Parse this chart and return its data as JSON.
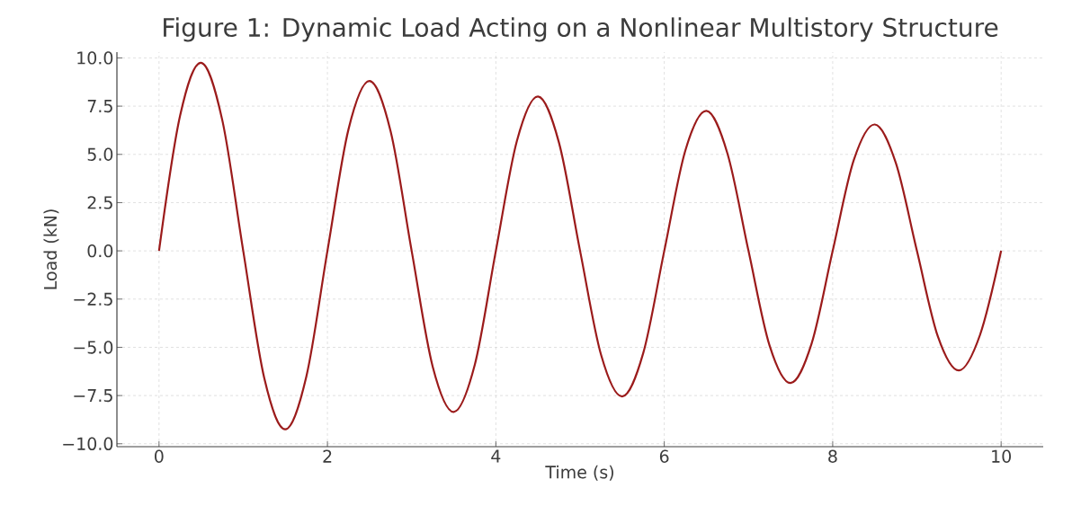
{
  "chart_data": {
    "type": "line",
    "title": "Figure 1: Dynamic Load Acting on a Nonlinear Multistory Structure",
    "xlabel": "Time (s)",
    "ylabel": "Load (kN)",
    "x": [
      0,
      0.25,
      0.5,
      0.75,
      1,
      1.25,
      1.5,
      1.75,
      2,
      2.25,
      2.5,
      2.75,
      3,
      3.25,
      3.5,
      3.75,
      4,
      4.25,
      4.5,
      4.75,
      5,
      5.25,
      5.5,
      5.75,
      6,
      6.25,
      6.5,
      6.75,
      7,
      7.25,
      7.5,
      7.75,
      8,
      8.25,
      8.5,
      8.75,
      9,
      9.25,
      9.5,
      9.75,
      10
    ],
    "series": [
      {
        "color": "#9b1b1b",
        "values": [
          0,
          7.0,
          9.75,
          6.8,
          0,
          -6.6,
          -9.25,
          -6.5,
          0,
          6.3,
          8.8,
          6.2,
          0,
          -6.0,
          -8.35,
          -5.9,
          0,
          5.7,
          8.0,
          5.6,
          0,
          -5.4,
          -7.55,
          -5.3,
          0,
          5.2,
          7.25,
          5.05,
          0,
          -4.9,
          -6.85,
          -4.8,
          0,
          4.7,
          6.55,
          4.55,
          0,
          -4.45,
          -6.2,
          -4.35,
          0
        ]
      }
    ],
    "xlim": [
      -0.5,
      10.5
    ],
    "ylim": [
      -10.15,
      10.3
    ],
    "xticks": [
      0,
      2,
      4,
      6,
      8,
      10
    ],
    "yticks": [
      {
        "value": -10,
        "label": "−10.0"
      },
      {
        "value": -7.5,
        "label": "−7.5"
      },
      {
        "value": -5,
        "label": "−5.0"
      },
      {
        "value": -2.5,
        "label": "−2.5"
      },
      {
        "value": 0,
        "label": "0.0"
      },
      {
        "value": 2.5,
        "label": "2.5"
      },
      {
        "value": 5,
        "label": "5.0"
      },
      {
        "value": 7.5,
        "label": "7.5"
      },
      {
        "value": 10,
        "label": "10.0"
      }
    ],
    "grid": true,
    "marker": "none",
    "line_style": "solid"
  }
}
